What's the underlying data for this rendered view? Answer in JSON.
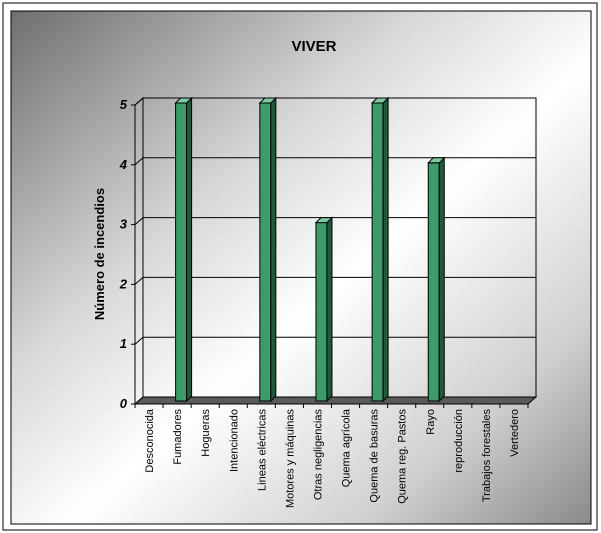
{
  "chart_data": {
    "type": "bar",
    "title": "VIVER",
    "xlabel": "",
    "ylabel": "Número de incendios",
    "ylim": [
      0,
      5
    ],
    "yticks": [
      "0",
      "1",
      "2",
      "3",
      "4",
      "5"
    ],
    "categories": [
      "Desconocida",
      "Fumadores",
      "Hogueras",
      "Intencionado",
      "Lineas eléctricas",
      "Motores y máquinas",
      "Otras negligencias",
      "Quema agrícola",
      "Quema de basuras",
      "Quema reg. Pastos",
      "Rayo",
      "reproducción",
      "Trabajos forestales",
      "Vertedero"
    ],
    "values": [
      0,
      5,
      0,
      0,
      5,
      0,
      3,
      0,
      5,
      0,
      4,
      0,
      0,
      0
    ],
    "grid": true,
    "legend": "none",
    "colors": {
      "bar_front": "#3e9a6a",
      "bar_side": "#1f5a3c",
      "bar_top": "#7fcaa0",
      "background_dark": "#7a7a7a",
      "background_light": "#ffffff"
    }
  }
}
